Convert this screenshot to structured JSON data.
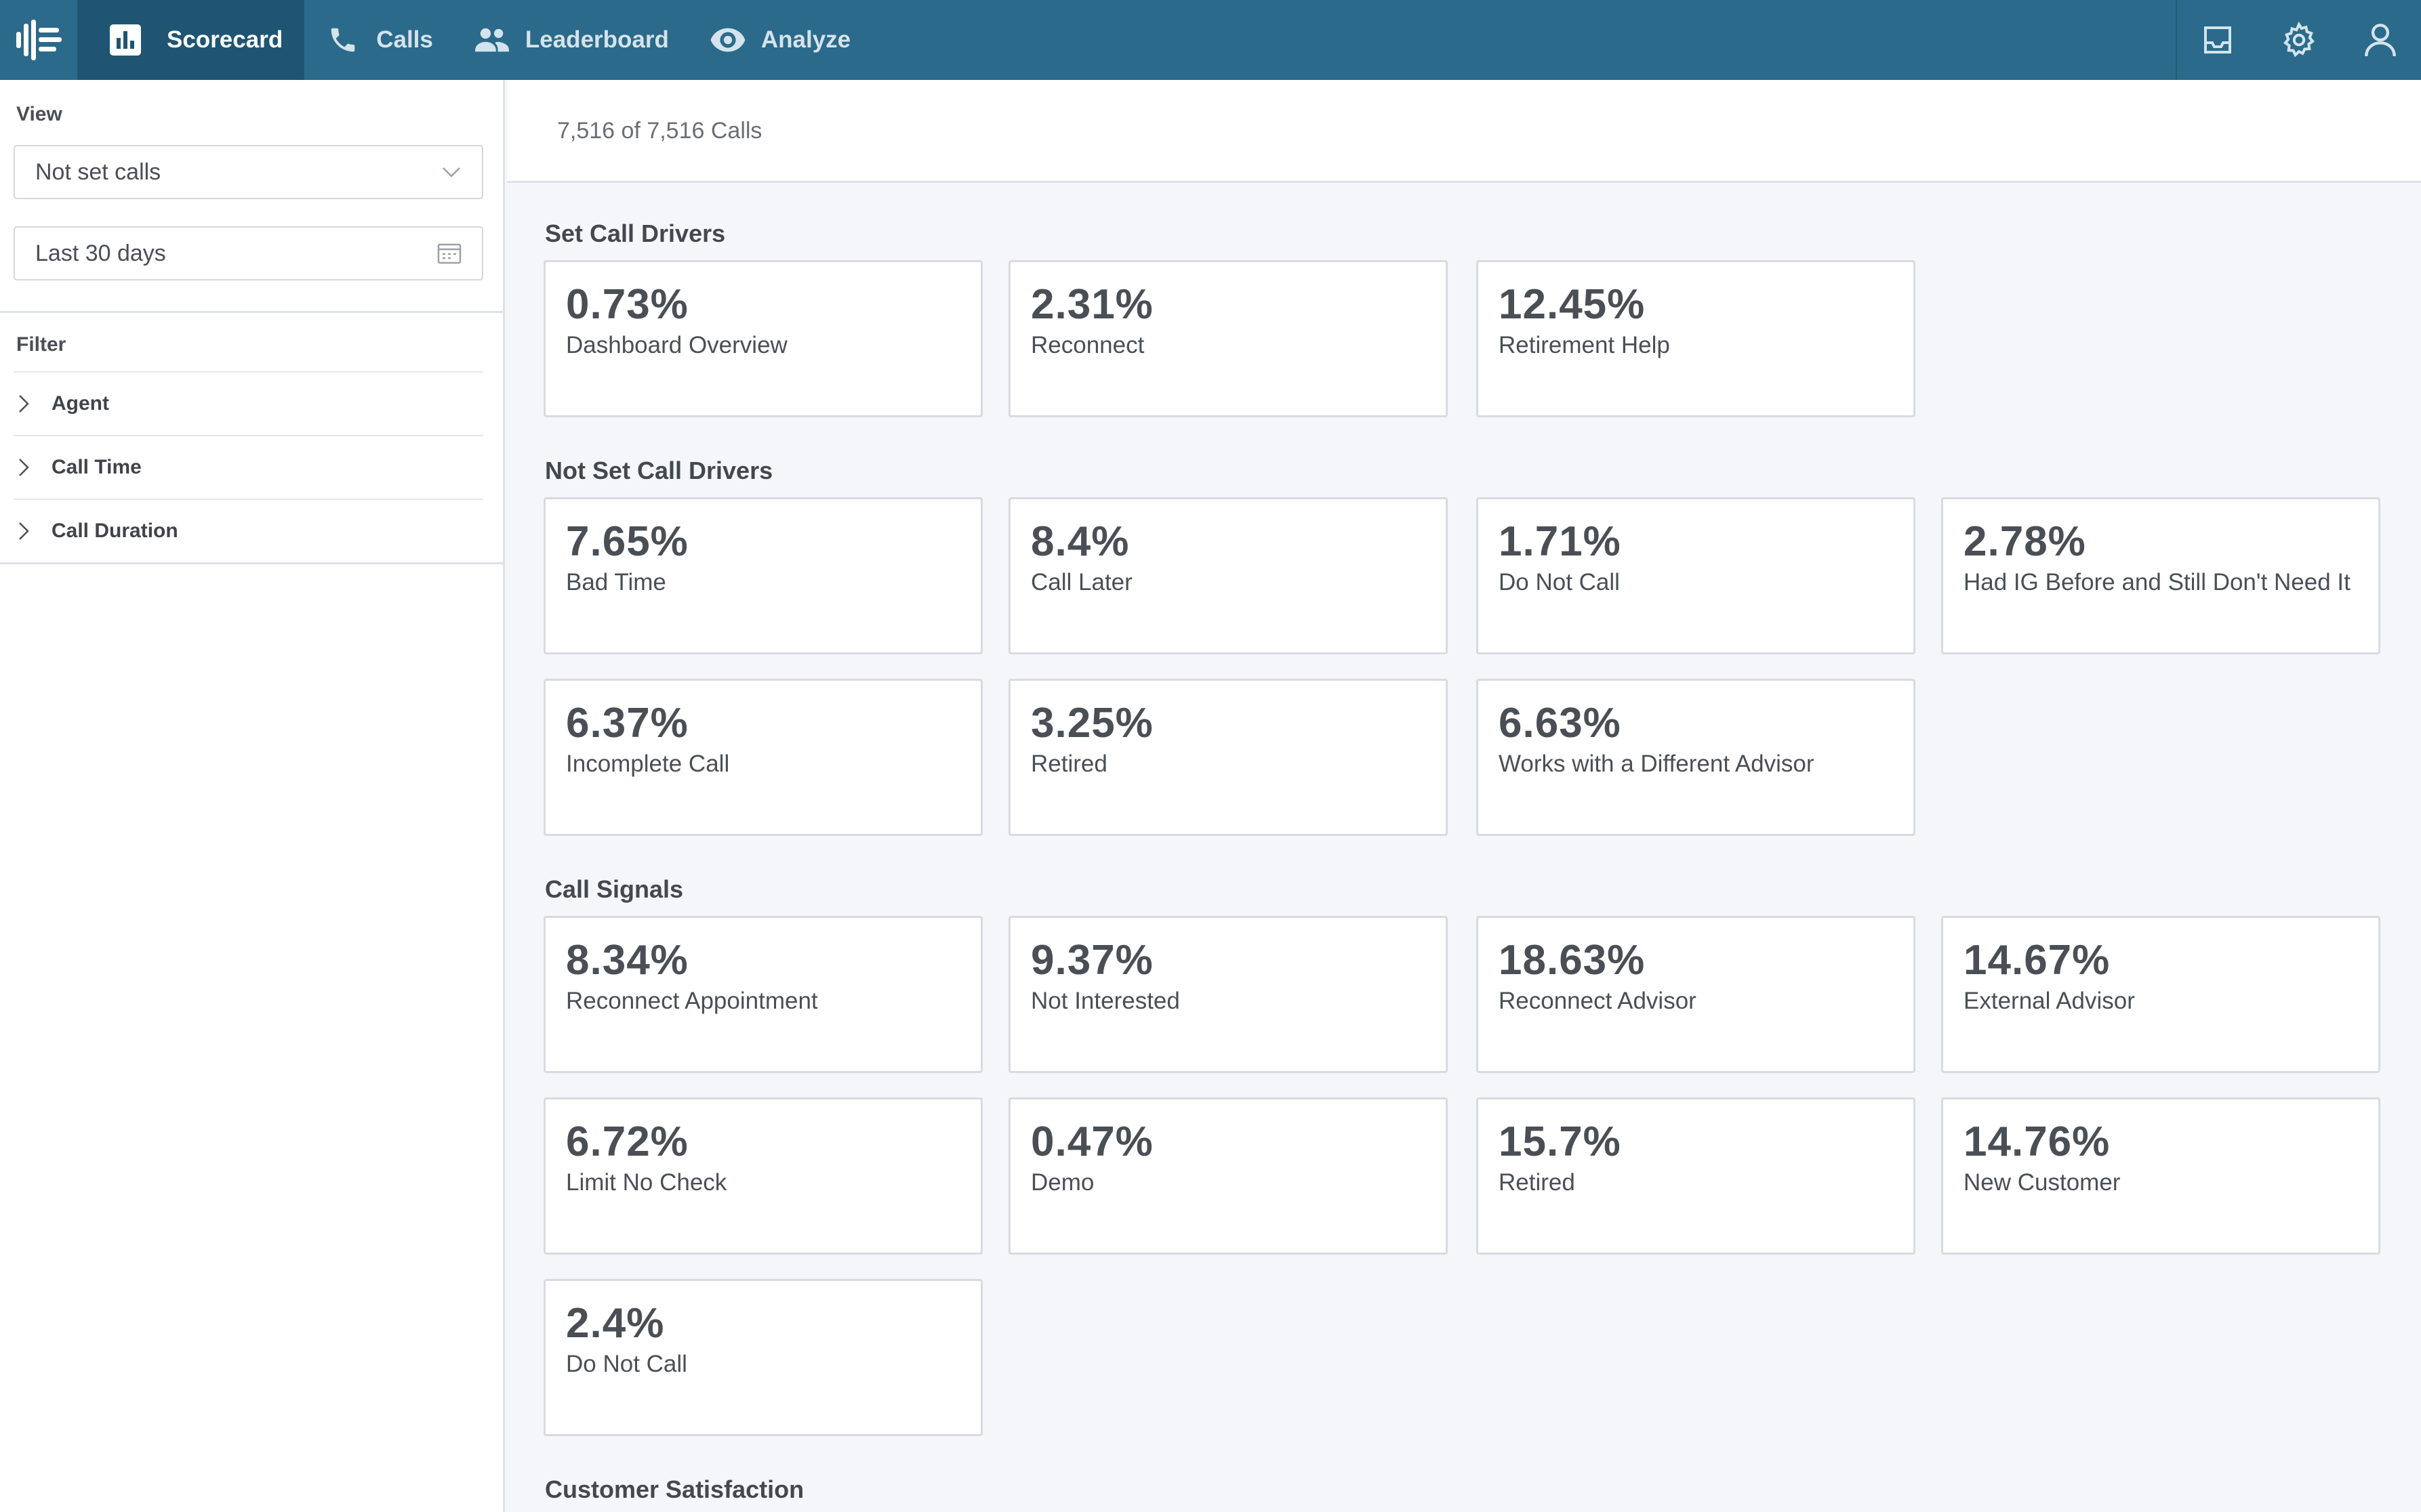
{
  "topbar": {
    "tabs": [
      {
        "label": "Scorecard",
        "icon": "bar-chart-icon",
        "active": true
      },
      {
        "label": "Calls",
        "icon": "phone-icon",
        "active": false
      },
      {
        "label": "Leaderboard",
        "icon": "people-icon",
        "active": false
      },
      {
        "label": "Analyze",
        "icon": "eye-icon",
        "active": false
      }
    ],
    "right_icons": [
      "inbox-icon",
      "gear-icon",
      "user-icon"
    ],
    "colors": {
      "bar": "#2b6a8a",
      "active_tab": "#1f5572"
    }
  },
  "sidebar": {
    "view_label": "View",
    "view_select": "Not set calls",
    "date_range": "Last 30 days",
    "filter_label": "Filter",
    "filters": [
      "Agent",
      "Call Time",
      "Call Duration"
    ]
  },
  "main": {
    "count": "7,516 of 7,516 Calls",
    "sections": [
      {
        "title": "Set Call Drivers",
        "cards": [
          {
            "pct": "0.73%",
            "label": "Dashboard Overview"
          },
          {
            "pct": "2.31%",
            "label": "Reconnect"
          },
          {
            "pct": "12.45%",
            "label": "Retirement Help"
          }
        ]
      },
      {
        "title": "Not Set Call Drivers",
        "cards": [
          {
            "pct": "7.65%",
            "label": "Bad Time"
          },
          {
            "pct": "8.4%",
            "label": "Call Later"
          },
          {
            "pct": "1.71%",
            "label": "Do Not Call"
          },
          {
            "pct": "2.78%",
            "label": "Had IG Before and Still Don't Need It"
          },
          {
            "pct": "6.37%",
            "label": "Incomplete Call"
          },
          {
            "pct": "3.25%",
            "label": "Retired"
          },
          {
            "pct": "6.63%",
            "label": "Works with a Different Advisor"
          }
        ]
      },
      {
        "title": "Call Signals",
        "cards": [
          {
            "pct": "8.34%",
            "label": "Reconnect Appointment"
          },
          {
            "pct": "9.37%",
            "label": "Not Interested"
          },
          {
            "pct": "18.63%",
            "label": "Reconnect Advisor"
          },
          {
            "pct": "14.67%",
            "label": "External Advisor"
          },
          {
            "pct": "6.72%",
            "label": "Limit No Check"
          },
          {
            "pct": "0.47%",
            "label": "Demo"
          },
          {
            "pct": "15.7%",
            "label": "Retired"
          },
          {
            "pct": "14.76%",
            "label": "New Customer"
          },
          {
            "pct": "2.4%",
            "label": "Do Not Call"
          }
        ]
      },
      {
        "title": "Customer Satisfaction",
        "cards": []
      }
    ]
  }
}
